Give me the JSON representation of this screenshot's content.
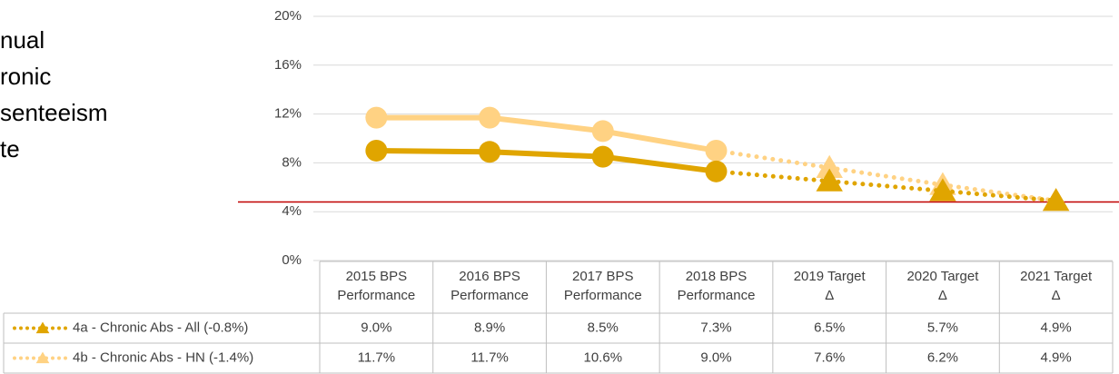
{
  "chart_data": {
    "type": "line",
    "title_lines": [
      "nual",
      "ronic",
      "senteeism",
      "te"
    ],
    "categories": [
      [
        "2015 BPS",
        "Performance"
      ],
      [
        "2016 BPS",
        "Performance"
      ],
      [
        "2017 BPS",
        "Performance"
      ],
      [
        "2018 BPS",
        "Performance"
      ],
      [
        "2019 Target",
        "Δ"
      ],
      [
        "2020 Target",
        "Δ"
      ],
      [
        "2021 Target",
        "Δ"
      ]
    ],
    "series": [
      {
        "name": "4a - Chronic Abs - All (-0.8%)",
        "color": "#e0a500",
        "values": [
          9.0,
          8.9,
          8.5,
          7.3,
          6.5,
          5.7,
          4.9
        ],
        "value_labels": [
          "9.0%",
          "8.9%",
          "8.5%",
          "7.3%",
          "6.5%",
          "5.7%",
          "4.9%"
        ]
      },
      {
        "name": "4b - Chronic Abs - HN (-1.4%)",
        "color": "#ffd283",
        "values": [
          11.7,
          11.7,
          10.6,
          9.0,
          7.6,
          6.2,
          4.9
        ],
        "value_labels": [
          "11.7%",
          "11.7%",
          "10.6%",
          "9.0%",
          "7.6%",
          "6.2%",
          "4.9%"
        ]
      }
    ],
    "dotted_from": 3,
    "reference_line": {
      "value": 4.8,
      "color": "#c00000"
    },
    "ylim": [
      0,
      20
    ],
    "yticks": [
      {
        "value": 0,
        "label": "0%"
      },
      {
        "value": 4,
        "label": "4%"
      },
      {
        "value": 8,
        "label": "8%"
      },
      {
        "value": 12,
        "label": "12%"
      },
      {
        "value": 16,
        "label": "16%"
      },
      {
        "value": 20,
        "label": "20%"
      }
    ],
    "grid": true
  }
}
